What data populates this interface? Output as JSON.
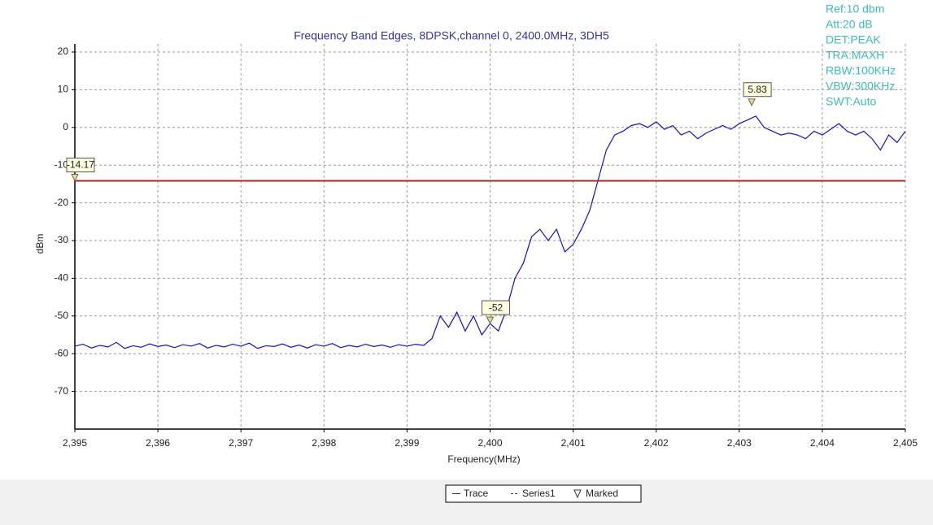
{
  "chart_data": {
    "type": "line",
    "title": "Frequency Band Edges, 8DPSK,channel 0, 2400.0MHz, 3DH5",
    "xlabel": "Frequency(MHz)",
    "ylabel": "dBm",
    "annotations": [
      "Ref:10 dbm",
      "Att:20 dB",
      "DET:PEAK",
      "TRA:MAXH",
      "RBW:100KHz",
      "VBW:300KHz",
      "SWT:Auto"
    ],
    "xlim": [
      2395,
      2405
    ],
    "xticks": [
      {
        "value": 2395,
        "label": "2,395"
      },
      {
        "value": 2396,
        "label": "2,396"
      },
      {
        "value": 2397,
        "label": "2,397"
      },
      {
        "value": 2398,
        "label": "2,398"
      },
      {
        "value": 2399,
        "label": "2,399"
      },
      {
        "value": 2400,
        "label": "2,400"
      },
      {
        "value": 2401,
        "label": "2,401"
      },
      {
        "value": 2402,
        "label": "2,402"
      },
      {
        "value": 2403,
        "label": "2,403"
      },
      {
        "value": 2404,
        "label": "2,404"
      },
      {
        "value": 2405,
        "label": "2,405"
      }
    ],
    "ylim": [
      -80,
      20
    ],
    "yticks": [
      -70,
      -60,
      -50,
      -40,
      -30,
      -20,
      -10,
      0,
      10,
      20
    ],
    "grid": true,
    "legend": "bottom",
    "series": [
      {
        "name": "Trace",
        "color": "#1010d0",
        "x": [
          2395.0,
          2395.1,
          2395.2,
          2395.3,
          2395.4,
          2395.5,
          2395.6,
          2395.7,
          2395.8,
          2395.9,
          2396.0,
          2396.1,
          2396.2,
          2396.3,
          2396.4,
          2396.5,
          2396.6,
          2396.7,
          2396.8,
          2396.9,
          2397.0,
          2397.1,
          2397.2,
          2397.3,
          2397.4,
          2397.5,
          2397.6,
          2397.7,
          2397.8,
          2397.9,
          2398.0,
          2398.1,
          2398.2,
          2398.3,
          2398.4,
          2398.5,
          2398.6,
          2398.7,
          2398.8,
          2398.9,
          2399.0,
          2399.1,
          2399.2,
          2399.3,
          2399.4,
          2399.5,
          2399.6,
          2399.7,
          2399.8,
          2399.9,
          2400.0,
          2400.1,
          2400.2,
          2400.3,
          2400.4,
          2400.5,
          2400.6,
          2400.7,
          2400.8,
          2400.9,
          2401.0,
          2401.1,
          2401.2,
          2401.3,
          2401.4,
          2401.5,
          2401.6,
          2401.7,
          2401.8,
          2401.9,
          2402.0,
          2402.1,
          2402.2,
          2402.3,
          2402.4,
          2402.5,
          2402.6,
          2402.7,
          2402.8,
          2402.9,
          2403.0,
          2403.1,
          2403.2,
          2403.3,
          2403.4,
          2403.5,
          2403.6,
          2403.7,
          2403.8,
          2403.9,
          2404.0,
          2404.1,
          2404.2,
          2404.3,
          2404.4,
          2404.5,
          2404.6,
          2404.7,
          2404.8,
          2404.9,
          2405.0
        ],
        "values": [
          -58,
          -57.5,
          -58.5,
          -57.8,
          -58.2,
          -57,
          -58.6,
          -57.9,
          -58.3,
          -57.4,
          -58.1,
          -57.7,
          -58.4,
          -57.6,
          -58,
          -57.3,
          -58.5,
          -57.8,
          -58.2,
          -57.5,
          -58,
          -57.2,
          -58.6,
          -57.9,
          -58.1,
          -57.4,
          -58.3,
          -57.7,
          -58.5,
          -57.6,
          -58,
          -57.3,
          -58.4,
          -57.8,
          -58.2,
          -57.5,
          -58.1,
          -57.7,
          -58.3,
          -57.6,
          -58,
          -57.5,
          -57.8,
          -56,
          -50,
          -53,
          -49,
          -54,
          -50,
          -55,
          -52,
          -54,
          -48,
          -40,
          -36,
          -29,
          -27,
          -30,
          -27,
          -33,
          -31,
          -27,
          -22,
          -14,
          -6,
          -2,
          -1,
          0.5,
          1,
          0,
          1.5,
          -0.5,
          0.5,
          -2,
          -1,
          -3,
          -1.5,
          -0.5,
          0.5,
          -0.5,
          1,
          2,
          3,
          0,
          -1,
          -2,
          -1.5,
          -2,
          -3,
          -1,
          -2,
          -0.5,
          1,
          -1,
          -2,
          -1,
          -3,
          -6,
          -2,
          -4,
          -1
        ]
      },
      {
        "name": "Series1",
        "color": "#b22222",
        "x": [
          2395,
          2405
        ],
        "values": [
          -14.17,
          -14.17
        ]
      },
      {
        "name": "Marked",
        "color": "#e8e070",
        "x": [
          2395,
          2400.0,
          2403.15
        ],
        "values": [
          -14.17,
          -52,
          5.83
        ]
      }
    ]
  }
}
